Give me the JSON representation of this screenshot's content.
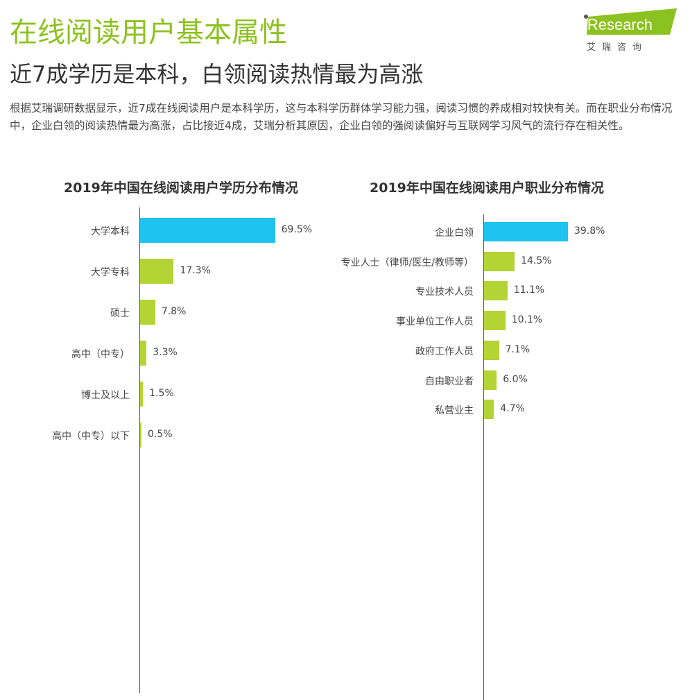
{
  "header": {
    "title": "在线阅读用户基本属性",
    "subtitle": "近7成学历是本科，白领阅读热情最为高涨",
    "description": "根据艾瑞调研数据显示，近7成在线阅读用户是本科学历，这与本科学历群体学习能力强，阅读习惯的养成相对较快有关。而在职业分布情况中，企业白领的阅读热情最为高涨，占比接近4成，艾瑞分析其原因，企业白领的强阅读偏好与互联网学习风气的流行存在相关性。"
  },
  "logo": {
    "text": "iResearch",
    "cn": "艾 瑞 咨 询"
  },
  "colors": {
    "accent": "#8cc21f",
    "highlight_bar": "#1ec4ef",
    "bar": "#b4d334"
  },
  "chart_data": [
    {
      "type": "bar",
      "orientation": "horizontal",
      "title": "2019年中国在线阅读用户学历分布情况",
      "categories": [
        "大学本科",
        "大学专科",
        "硕士",
        "高中（中专）",
        "博士及以上",
        "高中（中专）以下"
      ],
      "values": [
        69.5,
        17.3,
        7.8,
        3.3,
        1.5,
        0.5
      ],
      "unit": "%",
      "xlim": [
        0,
        100
      ]
    },
    {
      "type": "bar",
      "orientation": "horizontal",
      "title": "2019年中国在线阅读用户职业分布情况",
      "categories": [
        "企业白领",
        "专业人士（律师/医生/教师等）",
        "专业技术人员",
        "事业单位工作人员",
        "政府工作人员",
        "自由职业者",
        "私营业主"
      ],
      "values": [
        39.8,
        14.5,
        11.1,
        10.1,
        7.1,
        6.0,
        4.7
      ],
      "unit": "%",
      "xlim": [
        0,
        100
      ]
    }
  ]
}
